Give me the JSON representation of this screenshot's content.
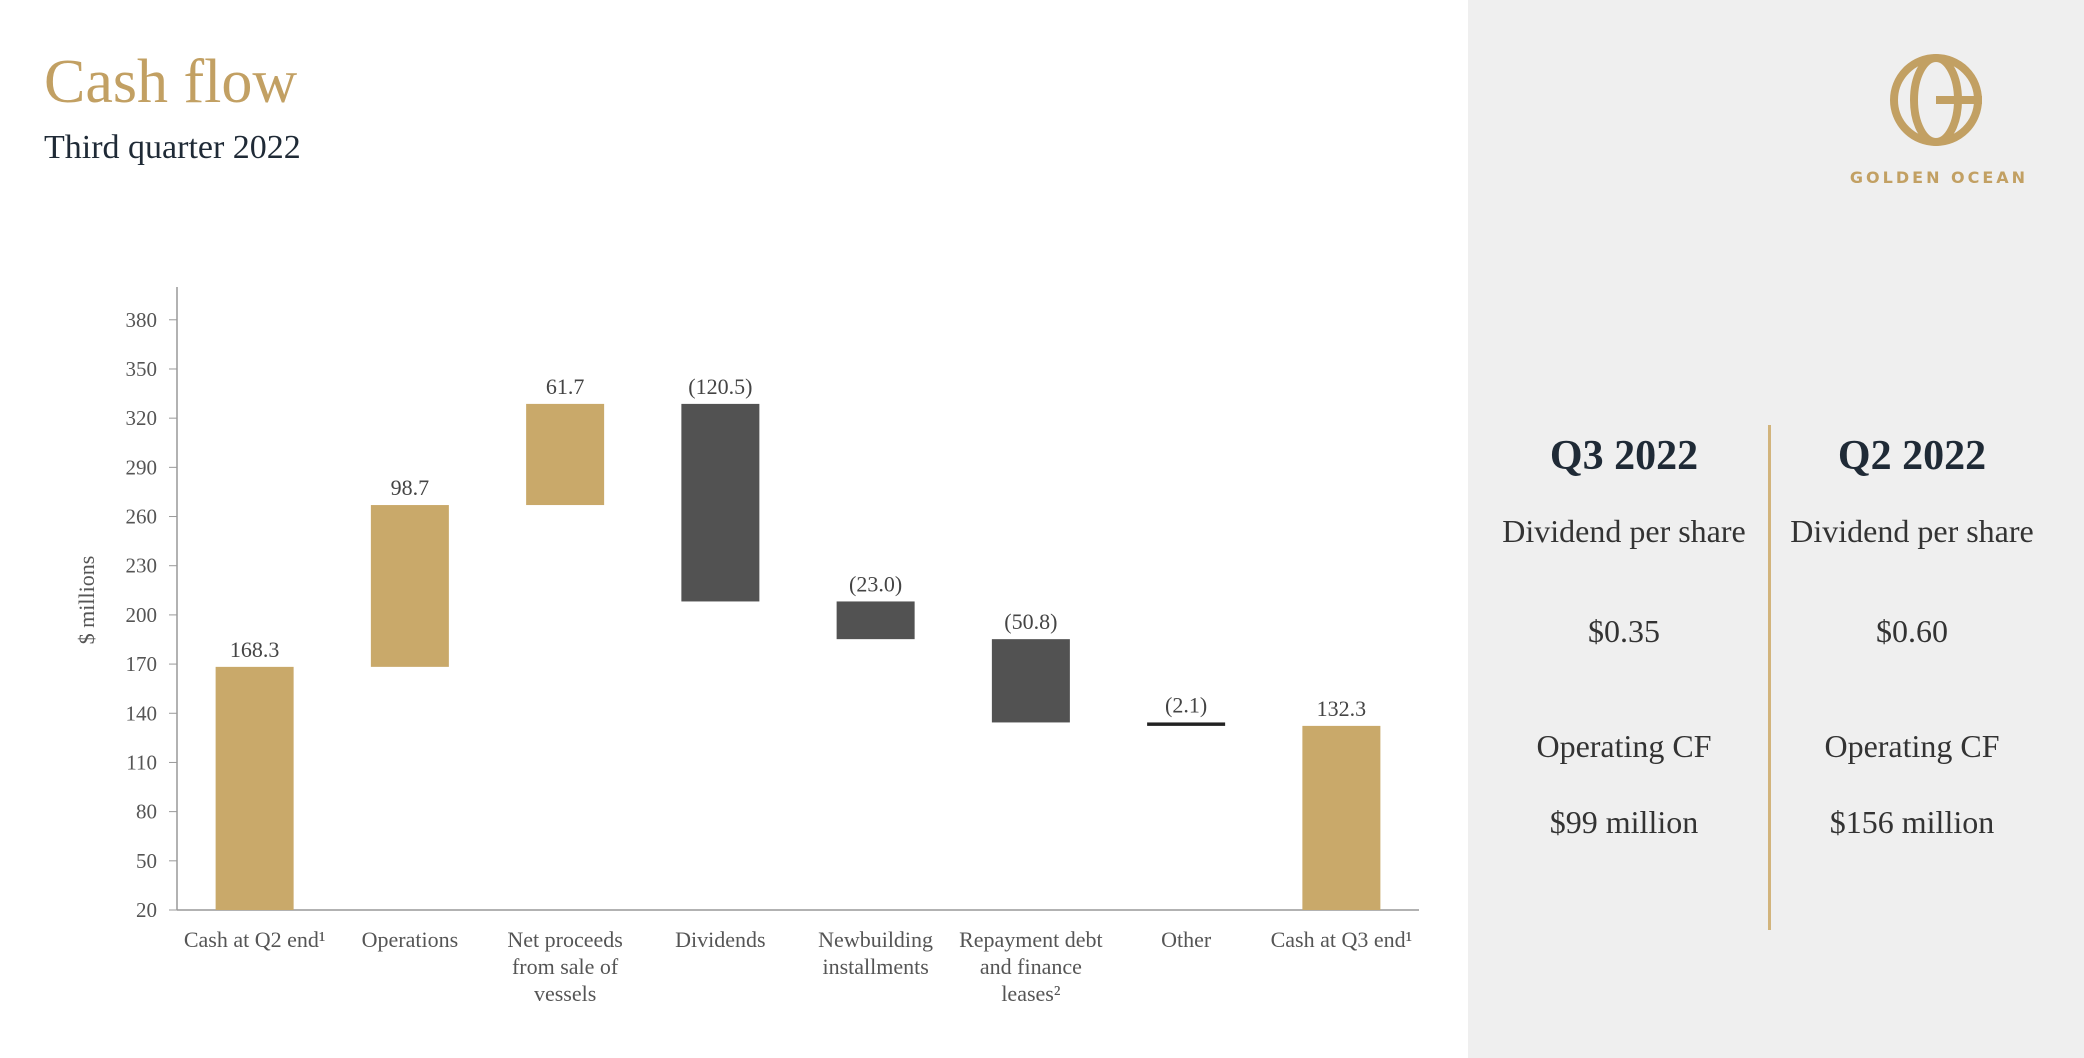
{
  "chart_data": {
    "type": "waterfall",
    "title": "Cash flow",
    "subtitle": "Third quarter 2022",
    "y_label": "$ millions",
    "categories": [
      "Cash at Q2 end¹",
      "Operations",
      "Net proceeds from sale of vessels",
      "Dividends",
      "Newbuilding installments",
      "Repayment debt and finance leases²",
      "Other",
      "Cash at Q3 end¹"
    ],
    "values": [
      168.3,
      98.7,
      61.7,
      -120.5,
      -23.0,
      -50.8,
      -2.1,
      132.3
    ],
    "value_labels": [
      "168.3",
      "98.7",
      "61.7",
      "(120.5)",
      "(23.0)",
      "(50.8)",
      "(2.1)",
      "132.3"
    ],
    "totals": [
      0,
      7
    ],
    "positive_color": "#c9a96a",
    "negative_color": "#525252",
    "ylim": [
      20,
      400
    ],
    "yticks": [
      20,
      50,
      80,
      110,
      140,
      170,
      200,
      230,
      260,
      290,
      320,
      350,
      380
    ],
    "grid": false
  },
  "panel": {
    "brand": "GOLDEN OCEAN",
    "columns": [
      {
        "heading": "Q3 2022",
        "dividend_label": "Dividend per share",
        "dividend": "$0.35",
        "cf_label": "Operating CF",
        "cf": "$99 million"
      },
      {
        "heading": "Q2 2022",
        "dividend_label": "Dividend per share",
        "dividend": "$0.60",
        "cf_label": "Operating CF",
        "cf": "$156 million"
      }
    ]
  }
}
